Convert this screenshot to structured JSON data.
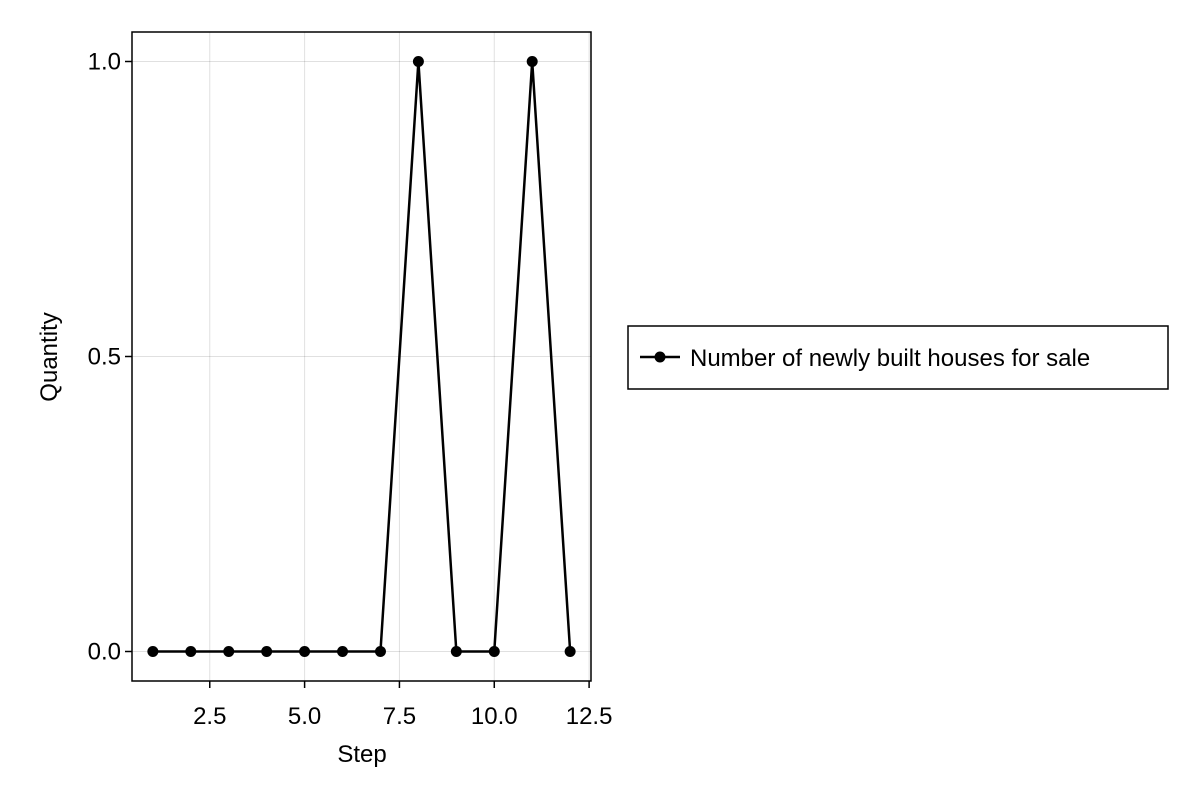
{
  "chart_data": {
    "type": "line",
    "xlabel": "Step",
    "ylabel": "Quantity",
    "xlim": [
      0.45,
      12.55
    ],
    "ylim": [
      -0.05,
      1.05
    ],
    "xticks": [
      2.5,
      5.0,
      7.5,
      10.0,
      12.5
    ],
    "xtick_labels": [
      "2.5",
      "5.0",
      "7.5",
      "10.0",
      "12.5"
    ],
    "yticks": [
      0.0,
      0.5,
      1.0
    ],
    "ytick_labels": [
      "0.0",
      "0.5",
      "1.0"
    ],
    "grid": true,
    "legend_position": "right",
    "series": [
      {
        "name": "Number of newly built houses for sale",
        "color": "#000000",
        "marker": "circle",
        "x": [
          1,
          2,
          3,
          4,
          5,
          6,
          7,
          8,
          9,
          10,
          11,
          12
        ],
        "y": [
          0,
          0,
          0,
          0,
          0,
          0,
          0,
          1,
          0,
          0,
          1,
          0
        ]
      }
    ]
  }
}
